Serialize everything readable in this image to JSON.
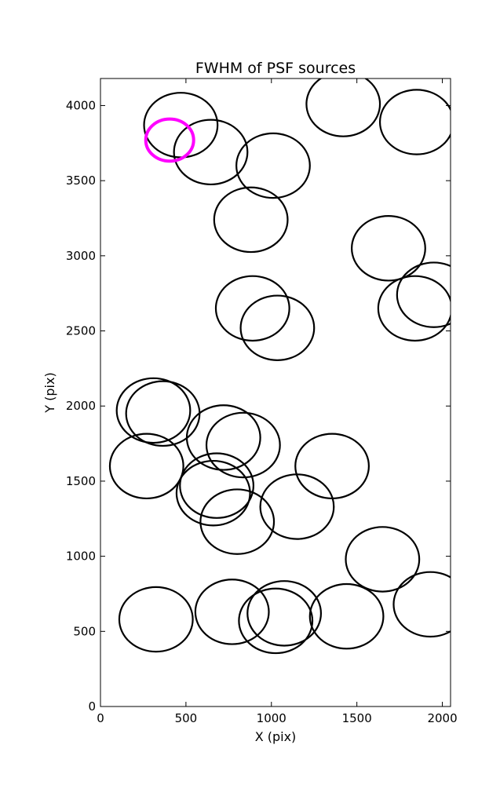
{
  "chart_data": {
    "type": "scatter",
    "title": "FWHM of PSF sources",
    "xlabel": "X (pix)",
    "ylabel": "Y (pix)",
    "xlim": [
      0,
      2048
    ],
    "ylim": [
      0,
      4180
    ],
    "xticks": [
      0,
      500,
      1000,
      1500,
      2000
    ],
    "yticks": [
      0,
      500,
      1000,
      1500,
      2000,
      2500,
      3000,
      3500,
      4000
    ],
    "grid": false,
    "marker": "circle",
    "series": [
      {
        "color": "#000000",
        "points": [
          {
            "x": 470,
            "y": 3870,
            "r": 215
          },
          {
            "x": 645,
            "y": 3690,
            "r": 215
          },
          {
            "x": 1010,
            "y": 3600,
            "r": 215
          },
          {
            "x": 880,
            "y": 3240,
            "r": 215
          },
          {
            "x": 1420,
            "y": 4010,
            "r": 215
          },
          {
            "x": 1850,
            "y": 3890,
            "r": 215
          },
          {
            "x": 1685,
            "y": 3050,
            "r": 215
          },
          {
            "x": 1840,
            "y": 2650,
            "r": 215
          },
          {
            "x": 1950,
            "y": 2740,
            "r": 215
          },
          {
            "x": 890,
            "y": 2650,
            "r": 215
          },
          {
            "x": 1035,
            "y": 2520,
            "r": 215
          },
          {
            "x": 310,
            "y": 1970,
            "r": 215
          },
          {
            "x": 365,
            "y": 1950,
            "r": 215
          },
          {
            "x": 720,
            "y": 1790,
            "r": 215
          },
          {
            "x": 835,
            "y": 1740,
            "r": 215
          },
          {
            "x": 1355,
            "y": 1600,
            "r": 215
          },
          {
            "x": 270,
            "y": 1600,
            "r": 215
          },
          {
            "x": 660,
            "y": 1420,
            "r": 215
          },
          {
            "x": 680,
            "y": 1470,
            "r": 215
          },
          {
            "x": 800,
            "y": 1230,
            "r": 215
          },
          {
            "x": 1150,
            "y": 1330,
            "r": 215
          },
          {
            "x": 1650,
            "y": 980,
            "r": 215
          },
          {
            "x": 1930,
            "y": 680,
            "r": 215
          },
          {
            "x": 325,
            "y": 580,
            "r": 215
          },
          {
            "x": 770,
            "y": 630,
            "r": 215
          },
          {
            "x": 1075,
            "y": 620,
            "r": 215
          },
          {
            "x": 1025,
            "y": 570,
            "r": 215
          },
          {
            "x": 1440,
            "y": 600,
            "r": 215
          }
        ]
      },
      {
        "color": "#ff00ff",
        "points": [
          {
            "x": 405,
            "y": 3770,
            "r": 140
          }
        ]
      }
    ]
  }
}
